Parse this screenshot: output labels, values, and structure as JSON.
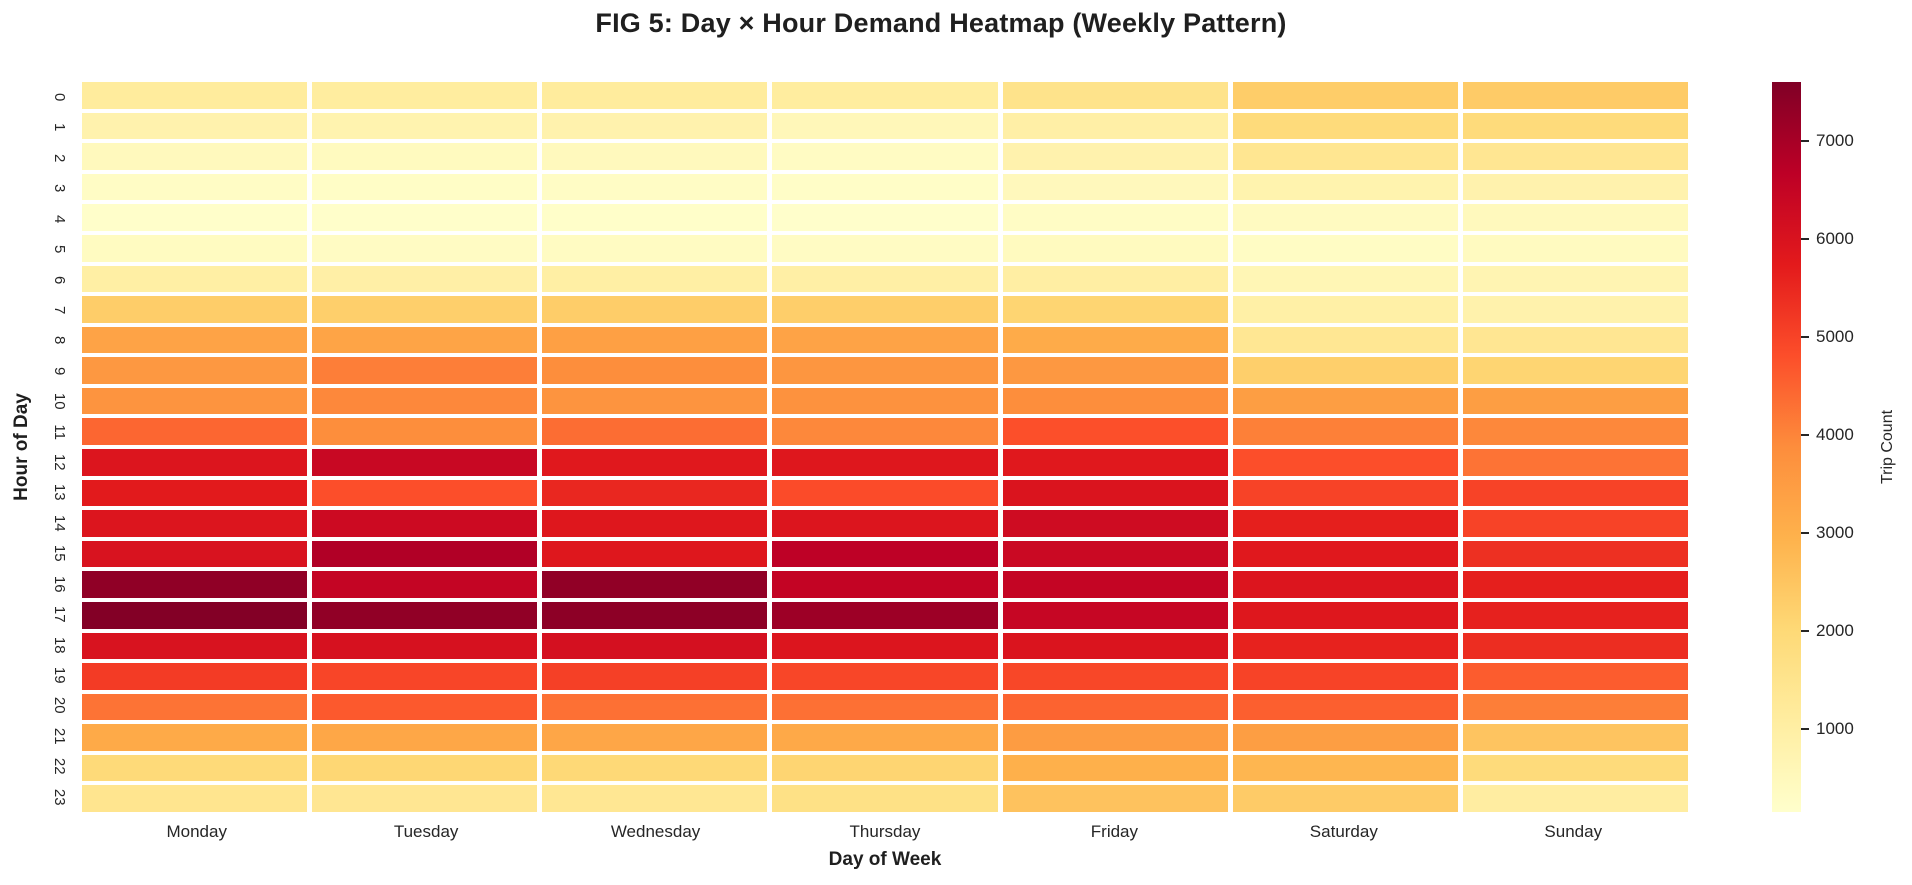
{
  "chart_data": {
    "type": "heatmap",
    "title": "FIG 5: Day × Hour Demand Heatmap (Weekly Pattern)",
    "xlabel": "Day of Week",
    "ylabel": "Hour of Day",
    "colorbar_label": "Trip Count",
    "x_categories": [
      "Monday",
      "Tuesday",
      "Wednesday",
      "Thursday",
      "Friday",
      "Saturday",
      "Sunday"
    ],
    "y_categories": [
      "0",
      "1",
      "2",
      "3",
      "4",
      "5",
      "6",
      "7",
      "8",
      "9",
      "10",
      "11",
      "12",
      "13",
      "14",
      "15",
      "16",
      "17",
      "18",
      "19",
      "20",
      "21",
      "22",
      "23"
    ],
    "values": [
      [
        1150,
        1100,
        1150,
        1100,
        1550,
        2300,
        2350
      ],
      [
        800,
        760,
        800,
        560,
        960,
        1900,
        1900
      ],
      [
        460,
        430,
        470,
        340,
        800,
        1420,
        1400
      ],
      [
        290,
        270,
        290,
        260,
        490,
        780,
        810
      ],
      [
        200,
        190,
        210,
        180,
        300,
        390,
        460
      ],
      [
        380,
        350,
        370,
        340,
        420,
        320,
        410
      ],
      [
        1000,
        960,
        1000,
        980,
        1010,
        630,
        700
      ],
      [
        2300,
        2260,
        2310,
        2280,
        2110,
        950,
        830
      ],
      [
        3310,
        3300,
        3400,
        3310,
        3120,
        1360,
        1400
      ],
      [
        3600,
        4100,
        3850,
        3650,
        3610,
        2260,
        2110
      ],
      [
        3700,
        3950,
        3710,
        3750,
        3860,
        3450,
        3440
      ],
      [
        4450,
        3860,
        4350,
        3950,
        4790,
        4060,
        3950
      ],
      [
        5900,
        6400,
        5810,
        5850,
        5800,
        4800,
        4260
      ],
      [
        5750,
        4810,
        5500,
        4860,
        5950,
        5000,
        5010
      ],
      [
        5910,
        6300,
        5860,
        5900,
        6250,
        5650,
        5000
      ],
      [
        6000,
        6850,
        5850,
        6650,
        6350,
        5800,
        5350
      ],
      [
        7350,
        6500,
        7340,
        6510,
        6500,
        5910,
        5650
      ],
      [
        7560,
        7340,
        7400,
        7150,
        6460,
        5860,
        5610
      ],
      [
        6000,
        6060,
        6100,
        5900,
        5950,
        5600,
        5400
      ],
      [
        5150,
        4960,
        5050,
        4950,
        4940,
        5000,
        4600
      ],
      [
        4260,
        4650,
        4300,
        4310,
        4500,
        4550,
        4100
      ],
      [
        3150,
        3210,
        3250,
        3160,
        3500,
        3450,
        2510
      ],
      [
        1950,
        2050,
        2000,
        2100,
        3000,
        2850,
        1910
      ],
      [
        1450,
        1400,
        1360,
        1650,
        2550,
        2350,
        1060
      ]
    ],
    "vmin": 150,
    "vmax": 7600,
    "colorbar_ticks": [
      1000,
      2000,
      3000,
      4000,
      5000,
      6000,
      7000
    ],
    "colormap": "YlOrRd",
    "colormap_stops": [
      [
        0.0,
        "#FFFFCC"
      ],
      [
        0.125,
        "#FFEDA0"
      ],
      [
        0.25,
        "#FED976"
      ],
      [
        0.375,
        "#FEB24C"
      ],
      [
        0.5,
        "#FD8D3C"
      ],
      [
        0.625,
        "#FC4E2A"
      ],
      [
        0.75,
        "#E31A1C"
      ],
      [
        0.875,
        "#BD0026"
      ],
      [
        1.0,
        "#800026"
      ]
    ],
    "grid": false,
    "legend_position": "right-colorbar",
    "text_color": "#262626"
  }
}
